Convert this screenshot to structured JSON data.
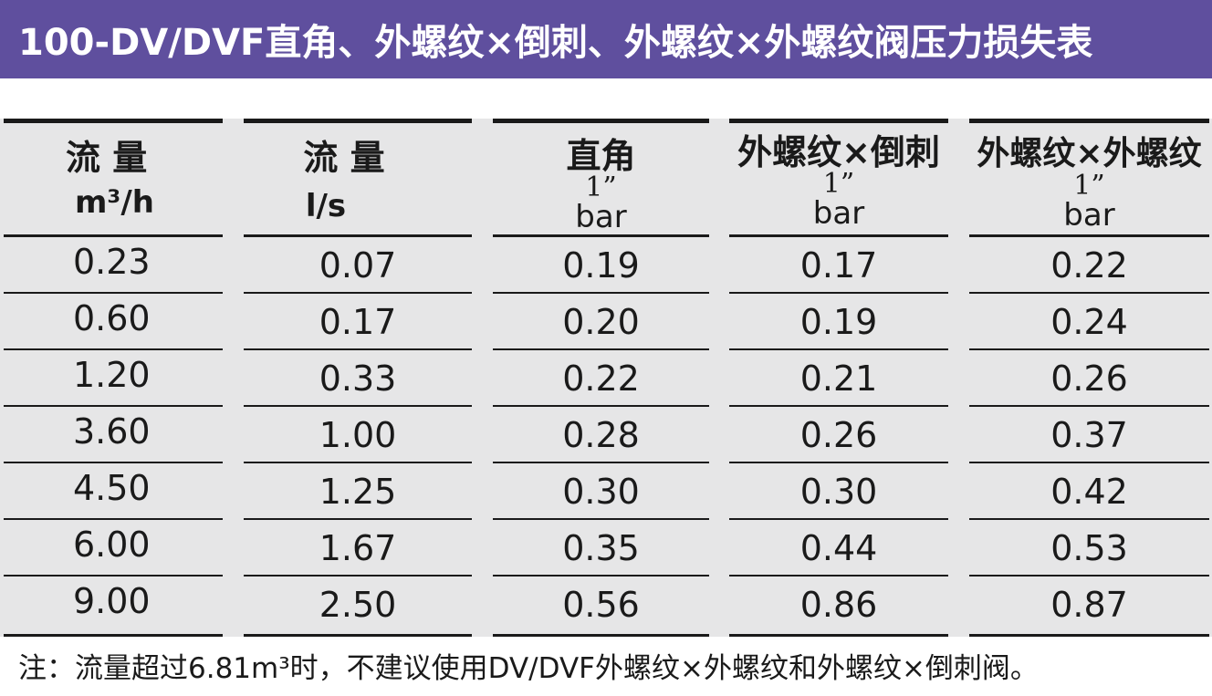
{
  "title": "100-DV/DVF直角、外螺纹×倒刺、外螺纹×外螺纹阀压力损失表",
  "table": {
    "headers": [
      {
        "name": "流 量",
        "inch": "",
        "unit": "m³/h"
      },
      {
        "name": "流 量",
        "inch": "",
        "unit": "l/s"
      },
      {
        "name": "直角",
        "inch": "1”",
        "unit": "bar"
      },
      {
        "name": "外螺纹×倒刺",
        "inch": "1”",
        "unit": "bar"
      },
      {
        "name": "外螺纹×外螺纹",
        "inch": "1”",
        "unit": "bar"
      }
    ],
    "rows": [
      [
        "0.23",
        "0.07",
        "0.19",
        "0.17",
        "0.22"
      ],
      [
        "0.60",
        "0.17",
        "0.20",
        "0.19",
        "0.24"
      ],
      [
        "1.20",
        "0.33",
        "0.22",
        "0.21",
        "0.26"
      ],
      [
        "3.60",
        "1.00",
        "0.28",
        "0.26",
        "0.37"
      ],
      [
        "4.50",
        "1.25",
        "0.30",
        "0.30",
        "0.42"
      ],
      [
        "6.00",
        "1.67",
        "0.35",
        "0.44",
        "0.53"
      ],
      [
        "9.00",
        "2.50",
        "0.56",
        "0.86",
        "0.87"
      ]
    ]
  },
  "note": "注：流量超过6.81m³时，不建议使用DV/DVF外螺纹×外螺纹和外螺纹×倒刺阀。",
  "colors": {
    "title_bg": "#5f4f9e",
    "table_bg": "#e6e6e7",
    "rule": "#1a1a1a"
  }
}
